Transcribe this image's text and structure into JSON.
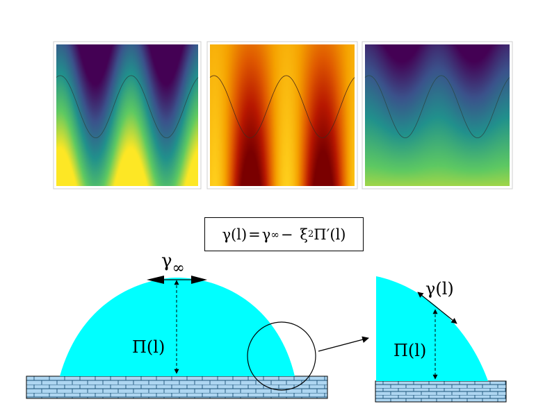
{
  "panels": [
    {
      "name": "panel-viridis-1",
      "palette": "viridis"
    },
    {
      "name": "panel-heat",
      "palette": "heat"
    },
    {
      "name": "panel-viridis-2",
      "palette": "viridis"
    }
  ],
  "formula": {
    "lhs": "γ(l)",
    "eq": "=",
    "gamma": "γ",
    "inf": "∞",
    "minus": "−",
    "xi": "ξ",
    "sq": "2",
    "Pi": "Π",
    "prime": "′",
    "arg": "(l)"
  },
  "labels": {
    "gamma_inf_symbol": "γ",
    "gamma_inf_sub": "∞",
    "pi_l": "Π(l)",
    "gamma_l": "γ(l)",
    "pi_l_zoom": "Π(l)"
  },
  "colors": {
    "droplet": "#00ffff",
    "substrate": "#aed6f1",
    "brick_line": "#1a5276",
    "viridis": [
      "#440154",
      "#3b528b",
      "#21918c",
      "#5ec962",
      "#fde725"
    ],
    "heat": [
      "#7a0000",
      "#b81800",
      "#e05a00",
      "#f5a000",
      "#ffd21e"
    ]
  }
}
